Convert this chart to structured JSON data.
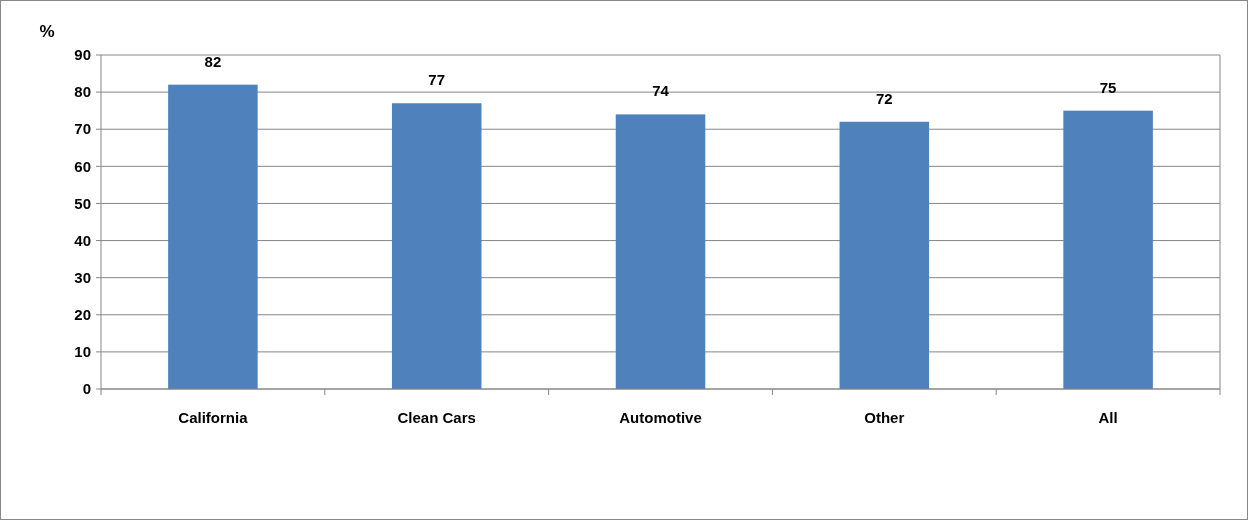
{
  "chart_data": {
    "type": "bar",
    "ylabel": "%",
    "categories": [
      "California",
      "Clean Cars",
      "Automotive",
      "Other",
      "All"
    ],
    "values": [
      82,
      77,
      74,
      72,
      75
    ],
    "color": "#4f81bd",
    "ylim": [
      0,
      90
    ],
    "yticks": [
      0,
      10,
      20,
      30,
      40,
      50,
      60,
      70,
      80,
      90
    ],
    "grid": "y",
    "data_labels": true
  }
}
